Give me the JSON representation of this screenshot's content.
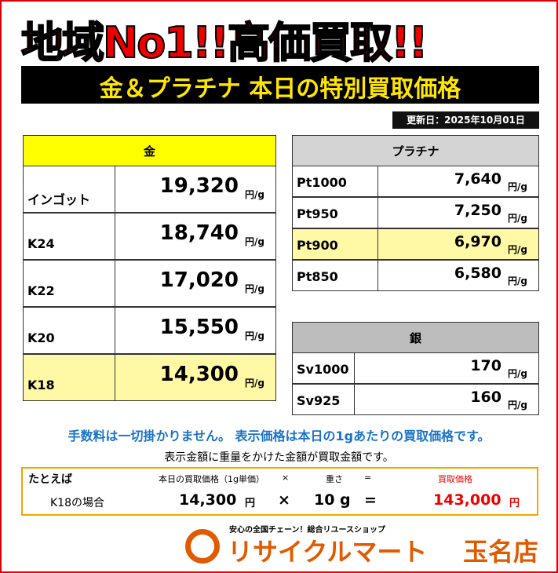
{
  "header": {
    "title": "地域No1!!高価買取!!",
    "subtitle": "金＆プラチナ 本日の特別買取価格",
    "updated": "更新日：2025年10月01日"
  },
  "gold": {
    "title": "金",
    "unit": "円/g",
    "rows": [
      {
        "name": "インゴット",
        "price": "19,320",
        "highlight": false
      },
      {
        "name": "K24",
        "price": "18,740",
        "highlight": false
      },
      {
        "name": "K22",
        "price": "17,020",
        "highlight": false
      },
      {
        "name": "K20",
        "price": "15,550",
        "highlight": false
      },
      {
        "name": "K18",
        "price": "14,300",
        "highlight": true
      }
    ]
  },
  "platinum": {
    "title": "プラチナ",
    "unit": "円/g",
    "rows": [
      {
        "name": "Pt1000",
        "price": "7,640",
        "highlight": false
      },
      {
        "name": "Pt950",
        "price": "7,250",
        "highlight": false
      },
      {
        "name": "Pt900",
        "price": "6,970",
        "highlight": true
      },
      {
        "name": "Pt850",
        "price": "6,580",
        "highlight": false
      }
    ]
  },
  "silver": {
    "title": "銀",
    "unit": "円/g",
    "rows": [
      {
        "name": "Sv1000",
        "price": "170",
        "highlight": false
      },
      {
        "name": "Sv925",
        "price": "160",
        "highlight": false
      }
    ]
  },
  "notes": {
    "fee": "手数料は一切掛かりません。 表示価格は本日の1gあたりの買取価格です。",
    "formula": "表示金額に重量をかけた金額が買取金額です。"
  },
  "example": {
    "label": "たとえば",
    "head_price": "本日の買取価格（1g単価）",
    "times": "×",
    "head_weight": "重さ",
    "equals": "=",
    "head_total": "買取価格",
    "case": "K18の場合",
    "price": "14,300",
    "yen": "円",
    "weight": "10 g",
    "total": "143,000"
  },
  "footer": {
    "tagline": "安心の全国チェーン！総合リユースショップ",
    "brand": "リサイクルマート",
    "store": "玉名店"
  }
}
